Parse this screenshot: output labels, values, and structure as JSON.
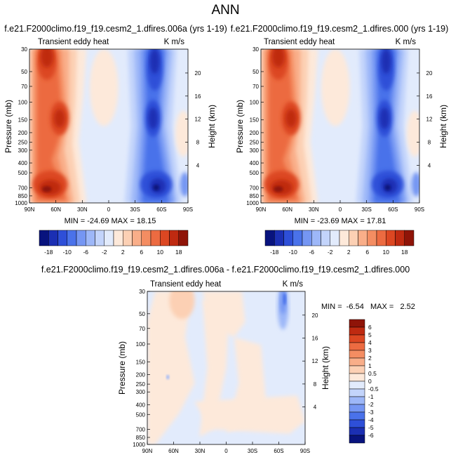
{
  "page_title": "ANN",
  "chart_data": [
    {
      "type": "heatmap",
      "title": "f.e21.F2000climo.f19_f19.cesm2_1.dfires.006a (yrs 1-19)",
      "left_label": "Transient eddy heat",
      "right_label": "K m/s",
      "ylabel": "Pressure (mb)",
      "ylabel_right": "Height (km)",
      "x_ticks": [
        "90N",
        "60N",
        "30N",
        "0",
        "30S",
        "60S",
        "90S"
      ],
      "y_ticks": [
        "30",
        "50",
        "70",
        "100",
        "150",
        "200",
        "250",
        "300",
        "400",
        "500",
        "700",
        "850",
        "1000"
      ],
      "height_ticks": [
        "20",
        "16",
        "12",
        "8",
        "4"
      ],
      "stats": "MIN = -24.69   MAX = 18.15",
      "colorbar_levels": [
        "-18",
        "-10",
        "-6",
        "-2",
        "2",
        "6",
        "10",
        "18"
      ],
      "min": -24.69,
      "max": 18.15
    },
    {
      "type": "heatmap",
      "title": "f.e21.F2000climo.f19_f19.cesm2_1.dfires.000 (yrs 1-19)",
      "left_label": "Transient eddy heat",
      "right_label": "K m/s",
      "ylabel": "Pressure (mb)",
      "ylabel_right": "Height (km)",
      "x_ticks": [
        "90N",
        "60N",
        "30N",
        "0",
        "30S",
        "60S",
        "90S"
      ],
      "y_ticks": [
        "30",
        "50",
        "70",
        "100",
        "150",
        "200",
        "250",
        "300",
        "400",
        "500",
        "700",
        "850",
        "1000"
      ],
      "height_ticks": [
        "20",
        "16",
        "12",
        "8",
        "4"
      ],
      "stats": "MIN = -23.69   MAX = 17.81",
      "colorbar_levels": [
        "-18",
        "-10",
        "-6",
        "-2",
        "2",
        "6",
        "10",
        "18"
      ],
      "min": -23.69,
      "max": 17.81
    },
    {
      "type": "heatmap",
      "title": "f.e21.F2000climo.f19_f19.cesm2_1.dfires.006a - f.e21.F2000climo.f19_f19.cesm2_1.dfires.000",
      "left_label": "Transient eddy heat",
      "right_label": "K m/s",
      "ylabel": "Pressure (mb)",
      "ylabel_right": "Height (km)",
      "x_ticks": [
        "90N",
        "60N",
        "30N",
        "0",
        "30S",
        "60S",
        "90S"
      ],
      "y_ticks": [
        "30",
        "50",
        "70",
        "100",
        "150",
        "200",
        "250",
        "300",
        "400",
        "500",
        "700",
        "850",
        "1000"
      ],
      "height_ticks": [
        "20",
        "16",
        "12",
        "8",
        "4"
      ],
      "stats": "MIN =  -6.54   MAX =   2.52",
      "colorbar_levels": [
        "6",
        "5",
        "4",
        "3",
        "2",
        "1",
        "0.5",
        "0",
        "-0.5",
        "-1",
        "-2",
        "-3",
        "-4",
        "-5",
        "-6"
      ],
      "min": -6.54,
      "max": 2.52
    }
  ],
  "colors": {
    "diverging_main": [
      "#08137e",
      "#1b2fb3",
      "#2e4fd8",
      "#4a72ea",
      "#7596f3",
      "#9db7f8",
      "#c3d4fb",
      "#e2ebfc",
      "#fde9da",
      "#fcd0b4",
      "#f9ae89",
      "#f48d62",
      "#ec6b41",
      "#dc4722",
      "#bf2a11",
      "#8f1408"
    ],
    "diverging_diff": [
      "#8f1408",
      "#bf2a11",
      "#dc4722",
      "#ec6b41",
      "#f48d62",
      "#f9ae89",
      "#fcd0b4",
      "#fde9da",
      "#e2ebfc",
      "#c3d4fb",
      "#9db7f8",
      "#7596f3",
      "#4a72ea",
      "#2e4fd8",
      "#1b2fb3",
      "#08137e"
    ]
  }
}
